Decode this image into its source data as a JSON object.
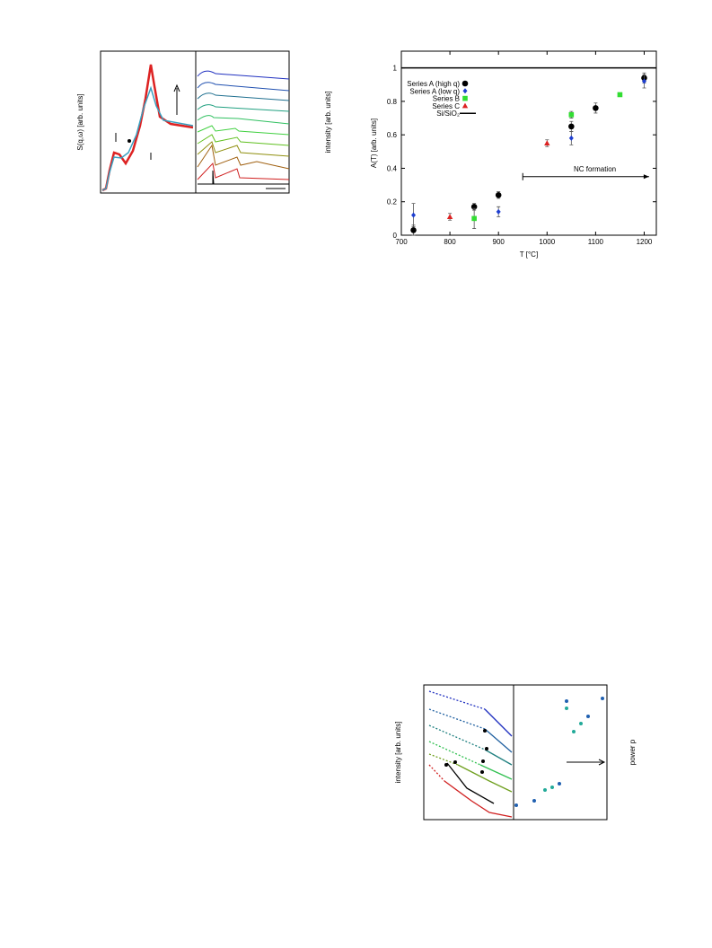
{
  "figure_top_left": {
    "ylabel_left": "S(q,ω) [arb. units]",
    "ylabel_right": "intensity [arb. units]"
  },
  "chart_data": {
    "type": "scatter",
    "xlabel": "T [°C]",
    "ylabel": "A(T) [arb. units]",
    "xlim": [
      700,
      1225
    ],
    "ylim": [
      0,
      1.1
    ],
    "xticks": [
      700,
      800,
      900,
      1000,
      1100,
      1200
    ],
    "yticks": [
      0,
      0.2,
      0.4,
      0.6,
      0.8,
      1
    ],
    "series": [
      {
        "name": "Series A (high q)",
        "color": "#000000",
        "marker": "circle",
        "x": [
          725,
          850,
          900,
          1050,
          1100,
          1200
        ],
        "values": [
          0.03,
          0.17,
          0.24,
          0.65,
          0.76,
          0.94
        ],
        "errors": [
          0.03,
          0.02,
          0.02,
          0.03,
          0.03,
          0.03
        ]
      },
      {
        "name": "Series A (low q)",
        "color": "#1f3fd0",
        "marker": "diamond",
        "x": [
          725,
          900,
          1050,
          1200
        ],
        "values": [
          0.12,
          0.14,
          0.58,
          0.92
        ],
        "errors": [
          0.07,
          0.03,
          0.04,
          0.04
        ]
      },
      {
        "name": "Series B",
        "color": "#33dd33",
        "marker": "square",
        "x": [
          850,
          1050,
          1150
        ],
        "values": [
          0.1,
          0.72,
          0.84
        ],
        "errors": [
          0.06,
          0.02,
          0.01
        ]
      },
      {
        "name": "Series C",
        "color": "#dd2222",
        "marker": "triangle",
        "x": [
          800,
          1000
        ],
        "values": [
          0.11,
          0.55
        ],
        "errors": [
          0.02,
          0.02
        ]
      }
    ],
    "reference_line": {
      "name": "Si/SiO₂",
      "value": 1,
      "color": "#000000"
    },
    "annotation": {
      "text": "NC formation",
      "x": [
        950,
        1210
      ],
      "y": 0.35
    }
  },
  "figure_bottom": {
    "ylabel_left": "intensity [arb. units]",
    "ylabel_right": "power p"
  }
}
